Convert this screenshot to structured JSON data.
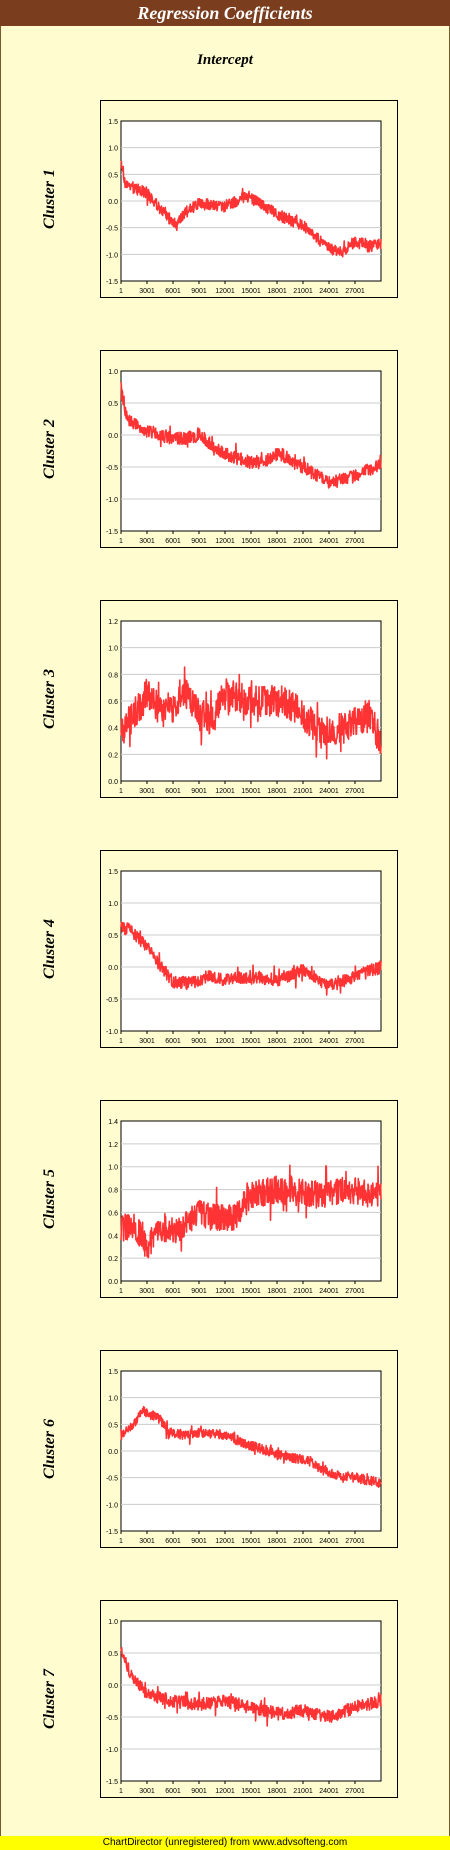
{
  "title": "Regression Coefficients",
  "subtitle": "Intercept",
  "footer": "ChartDirector (unregistered) from www.advsofteng.com",
  "colors": {
    "series": "#ff3333",
    "title_bg": "#7a3d1e",
    "background": "#fffdd0",
    "grid": "#cccccc"
  },
  "chart_data": [
    {
      "type": "line",
      "label": "Cluster 1",
      "ylim": [
        -1.5,
        1.5
      ],
      "yticks": [
        "1.5",
        "1.0",
        "0.5",
        "0.0",
        "-0.5",
        "-1.0",
        "-1.5"
      ],
      "xticks": [
        "1",
        "3001",
        "6001",
        "9001",
        "12001",
        "15001",
        "18001",
        "21001",
        "24001",
        "27001"
      ],
      "x_range": [
        1,
        30000
      ],
      "grid": true,
      "trend": [
        [
          1,
          0.8
        ],
        [
          500,
          0.3
        ],
        [
          1500,
          0.25
        ],
        [
          3000,
          0.15
        ],
        [
          5000,
          -0.25
        ],
        [
          6500,
          -0.45
        ],
        [
          7500,
          -0.2
        ],
        [
          9000,
          -0.05
        ],
        [
          12000,
          -0.1
        ],
        [
          14500,
          0.1
        ],
        [
          16000,
          -0.05
        ],
        [
          18000,
          -0.25
        ],
        [
          21000,
          -0.45
        ],
        [
          24000,
          -0.9
        ],
        [
          25500,
          -0.95
        ],
        [
          27000,
          -0.75
        ],
        [
          28500,
          -0.85
        ],
        [
          30000,
          -0.8
        ]
      ],
      "noise": 0.11
    },
    {
      "type": "line",
      "label": "Cluster 2",
      "ylim": [
        -1.5,
        1.0
      ],
      "yticks": [
        "1.0",
        "0.5",
        "0.0",
        "-0.5",
        "-1.0",
        "-1.5"
      ],
      "xticks": [
        "1",
        "3001",
        "6001",
        "9001",
        "12001",
        "15001",
        "18001",
        "21001",
        "24001",
        "27001"
      ],
      "x_range": [
        1,
        30000
      ],
      "grid": true,
      "trend": [
        [
          1,
          0.7
        ],
        [
          700,
          0.25
        ],
        [
          3000,
          0.05
        ],
        [
          6000,
          -0.05
        ],
        [
          8500,
          -0.05
        ],
        [
          9000,
          0.05
        ],
        [
          10500,
          -0.2
        ],
        [
          13000,
          -0.35
        ],
        [
          16000,
          -0.45
        ],
        [
          18000,
          -0.3
        ],
        [
          21000,
          -0.5
        ],
        [
          24000,
          -0.75
        ],
        [
          27000,
          -0.65
        ],
        [
          30000,
          -0.45
        ]
      ],
      "noise": 0.1
    },
    {
      "type": "line",
      "label": "Cluster 3",
      "ylim": [
        0.0,
        1.2
      ],
      "yticks": [
        "1.2",
        "1.0",
        "0.8",
        "0.6",
        "0.4",
        "0.2",
        "0.0"
      ],
      "xticks": [
        "1",
        "3001",
        "6001",
        "9001",
        "12001",
        "15001",
        "18001",
        "21001",
        "24001",
        "27001"
      ],
      "x_range": [
        1,
        30000
      ],
      "grid": true,
      "trend": [
        [
          1,
          0.35
        ],
        [
          1500,
          0.5
        ],
        [
          3000,
          0.65
        ],
        [
          5000,
          0.5
        ],
        [
          7500,
          0.65
        ],
        [
          9000,
          0.5
        ],
        [
          10500,
          0.45
        ],
        [
          12000,
          0.65
        ],
        [
          15000,
          0.6
        ],
        [
          18500,
          0.6
        ],
        [
          21000,
          0.5
        ],
        [
          23000,
          0.35
        ],
        [
          26000,
          0.4
        ],
        [
          28500,
          0.5
        ],
        [
          30000,
          0.3
        ]
      ],
      "noise": 0.12
    },
    {
      "type": "line",
      "label": "Cluster 4",
      "ylim": [
        -1.0,
        1.5
      ],
      "yticks": [
        "1.5",
        "1.0",
        "0.5",
        "0.0",
        "-0.5",
        "-1.0"
      ],
      "xticks": [
        "1",
        "3001",
        "6001",
        "9001",
        "12001",
        "15001",
        "18001",
        "21001",
        "24001",
        "27001"
      ],
      "x_range": [
        1,
        30000
      ],
      "grid": true,
      "trend": [
        [
          1,
          0.6
        ],
        [
          1000,
          0.6
        ],
        [
          3000,
          0.3
        ],
        [
          5000,
          -0.05
        ],
        [
          6000,
          -0.25
        ],
        [
          8000,
          -0.25
        ],
        [
          10000,
          -0.15
        ],
        [
          12000,
          -0.2
        ],
        [
          15000,
          -0.15
        ],
        [
          18000,
          -0.2
        ],
        [
          21000,
          -0.05
        ],
        [
          24000,
          -0.3
        ],
        [
          27000,
          -0.15
        ],
        [
          30000,
          0.0
        ]
      ],
      "noise": 0.1
    },
    {
      "type": "line",
      "label": "Cluster 5",
      "ylim": [
        0.0,
        1.4
      ],
      "yticks": [
        "1.4",
        "1.2",
        "1.0",
        "0.8",
        "0.6",
        "0.4",
        "0.2",
        "0.0"
      ],
      "xticks": [
        "1",
        "3001",
        "6001",
        "9001",
        "12001",
        "15001",
        "18001",
        "21001",
        "24001",
        "27001"
      ],
      "x_range": [
        1,
        30000
      ],
      "grid": true,
      "trend": [
        [
          1,
          0.45
        ],
        [
          1500,
          0.5
        ],
        [
          3000,
          0.3
        ],
        [
          4500,
          0.45
        ],
        [
          7000,
          0.45
        ],
        [
          9000,
          0.6
        ],
        [
          11000,
          0.55
        ],
        [
          13000,
          0.55
        ],
        [
          15000,
          0.75
        ],
        [
          18000,
          0.8
        ],
        [
          20000,
          0.8
        ],
        [
          23000,
          0.75
        ],
        [
          26000,
          0.8
        ],
        [
          30000,
          0.75
        ]
      ],
      "noise": 0.12
    },
    {
      "type": "line",
      "label": "Cluster 6",
      "ylim": [
        -1.5,
        1.5
      ],
      "yticks": [
        "1.5",
        "1.0",
        "0.5",
        "0.0",
        "-0.5",
        "-1.0",
        "-1.5"
      ],
      "xticks": [
        "1",
        "3001",
        "6001",
        "9001",
        "12001",
        "15001",
        "18001",
        "21001",
        "24001",
        "27001"
      ],
      "x_range": [
        1,
        30000
      ],
      "grid": true,
      "trend": [
        [
          1,
          0.3
        ],
        [
          1500,
          0.5
        ],
        [
          2500,
          0.75
        ],
        [
          4500,
          0.6
        ],
        [
          5500,
          0.35
        ],
        [
          7500,
          0.3
        ],
        [
          9000,
          0.35
        ],
        [
          12000,
          0.3
        ],
        [
          15000,
          0.1
        ],
        [
          18000,
          -0.05
        ],
        [
          20500,
          -0.15
        ],
        [
          22000,
          -0.2
        ],
        [
          23000,
          -0.35
        ],
        [
          25000,
          -0.45
        ],
        [
          27000,
          -0.5
        ],
        [
          30000,
          -0.6
        ]
      ],
      "noise": 0.09
    },
    {
      "type": "line",
      "label": "Cluster 7",
      "ylim": [
        -1.5,
        1.0
      ],
      "yticks": [
        "1.0",
        "0.5",
        "0.0",
        "-0.5",
        "-1.0",
        "-1.5"
      ],
      "xticks": [
        "1",
        "3001",
        "6001",
        "9001",
        "12001",
        "15001",
        "18001",
        "21001",
        "24001",
        "27001"
      ],
      "x_range": [
        1,
        30000
      ],
      "grid": true,
      "trend": [
        [
          1,
          0.55
        ],
        [
          800,
          0.25
        ],
        [
          3000,
          -0.15
        ],
        [
          6000,
          -0.25
        ],
        [
          9000,
          -0.3
        ],
        [
          12000,
          -0.25
        ],
        [
          15000,
          -0.35
        ],
        [
          18000,
          -0.45
        ],
        [
          21000,
          -0.4
        ],
        [
          24000,
          -0.5
        ],
        [
          27000,
          -0.35
        ],
        [
          30000,
          -0.25
        ]
      ],
      "noise": 0.1
    }
  ]
}
